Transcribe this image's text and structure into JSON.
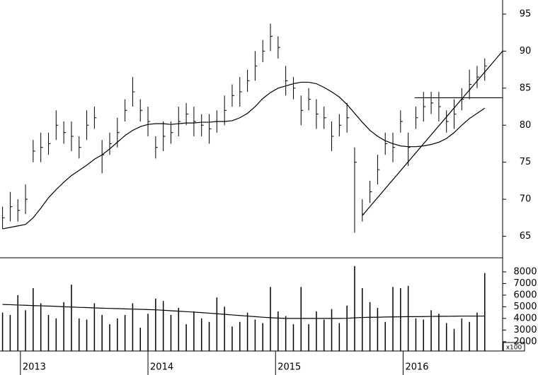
{
  "chart_data": [
    {
      "type": "ohlc",
      "color": "#000000",
      "x": [
        2012.86,
        2012.92,
        2012.98,
        2013.04,
        2013.1,
        2013.16,
        2013.22,
        2013.28,
        2013.34,
        2013.4,
        2013.46,
        2013.52,
        2013.58,
        2013.64,
        2013.7,
        2013.76,
        2013.82,
        2013.88,
        2013.94,
        2014,
        2014.06,
        2014.12,
        2014.18,
        2014.24,
        2014.3,
        2014.36,
        2014.42,
        2014.48,
        2014.54,
        2014.6,
        2014.66,
        2014.72,
        2014.78,
        2014.84,
        2014.9,
        2014.96,
        2015.02,
        2015.08,
        2015.14,
        2015.2,
        2015.26,
        2015.32,
        2015.38,
        2015.44,
        2015.5,
        2015.56,
        2015.62,
        2015.68,
        2015.74,
        2015.8,
        2015.86,
        2015.92,
        2015.98,
        2016.04,
        2016.1,
        2016.16,
        2016.22,
        2016.28,
        2016.34,
        2016.4,
        2016.46,
        2016.52,
        2016.58,
        2016.64
      ],
      "high": [
        69,
        71,
        70,
        72,
        78,
        79,
        79,
        82,
        80.5,
        80.5,
        78.5,
        82,
        82.5,
        78,
        79,
        81,
        83.5,
        86.5,
        83.5,
        82.5,
        78.5,
        80.5,
        80.5,
        82.5,
        83,
        82.5,
        81.5,
        81.5,
        82,
        84,
        85.5,
        86.5,
        87.5,
        90,
        91.5,
        93.7,
        92,
        88,
        86.5,
        84,
        85,
        83.5,
        82.5,
        80.5,
        81.5,
        83,
        77,
        70,
        72.5,
        76,
        79,
        79,
        82,
        79,
        82.5,
        84.5,
        84.5,
        84.5,
        82,
        83.5,
        85,
        87.5,
        88,
        89
      ],
      "low": [
        66,
        67,
        67,
        68,
        75,
        75,
        76,
        78,
        77.5,
        76.5,
        75.5,
        78,
        79.5,
        73.5,
        76,
        77,
        80.5,
        82.5,
        80.5,
        78.5,
        75.5,
        76.5,
        77.5,
        78.5,
        80,
        78.5,
        78.5,
        77.5,
        79,
        80,
        82.5,
        82.5,
        84.5,
        86,
        88.5,
        90,
        89,
        84,
        83.5,
        80,
        82,
        79.5,
        79.5,
        76.5,
        78.5,
        79,
        65.5,
        67,
        69.5,
        72,
        76,
        75,
        79,
        74.5,
        79.5,
        80.5,
        81.5,
        80.5,
        79,
        79.5,
        82,
        83.5,
        85,
        86
      ],
      "close": [
        67.5,
        69,
        68.5,
        70,
        76.5,
        77,
        77.5,
        80,
        79,
        78.5,
        77,
        80,
        81,
        76,
        77.5,
        79,
        82,
        84.5,
        82,
        80.5,
        77,
        78.5,
        79,
        80.5,
        81.5,
        80.5,
        80,
        79.5,
        80.5,
        82,
        84,
        84.5,
        86,
        88,
        90,
        92,
        90.5,
        86,
        85,
        82,
        83.5,
        81.5,
        81,
        78.5,
        80,
        81,
        75,
        68,
        71,
        74,
        77.5,
        77,
        80.5,
        77,
        81,
        82.5,
        83,
        82.5,
        80.5,
        81.5,
        83.5,
        85.5,
        86.5,
        88
      ],
      "ma": [
        66,
        66.2,
        66.4,
        66.6,
        67.5,
        68.8,
        70.2,
        71.3,
        72.3,
        73.2,
        73.9,
        74.6,
        75.4,
        76,
        76.8,
        77.7,
        78.6,
        79.3,
        79.8,
        80.1,
        80.2,
        80.2,
        80.1,
        80.2,
        80.3,
        80.3,
        80.4,
        80.4,
        80.5,
        80.5,
        80.6,
        81,
        81.6,
        82.5,
        83.6,
        84.4,
        85,
        85.3,
        85.6,
        85.8,
        85.8,
        85.6,
        85.1,
        84.5,
        83.8,
        82.8,
        81.6,
        80.4,
        79.3,
        78.5,
        77.9,
        77.5,
        77.2,
        77.1,
        77.1,
        77.2,
        77.4,
        77.7,
        78.2,
        79,
        80,
        80.9,
        81.6,
        82.3
      ],
      "trendlines": [
        {
          "x": [
            2015.68,
            2016.78
          ],
          "y": [
            67.8,
            90
          ]
        },
        {
          "x": [
            2016.09,
            2016.78
          ],
          "y": [
            83.7,
            83.7
          ]
        }
      ],
      "xlim": [
        2012.84,
        2016.78
      ],
      "xticks": [
        2013,
        2014,
        2015,
        2016
      ],
      "ylim": [
        62.1,
        96.9
      ],
      "yticks": [
        65,
        70,
        75,
        80,
        85,
        90,
        95
      ]
    },
    {
      "type": "bar",
      "color": "#000000",
      "unit_label": "x100",
      "values": [
        4500,
        4300,
        6000,
        4700,
        6600,
        5300,
        4300,
        4000,
        5400,
        6900,
        4000,
        3900,
        5300,
        4300,
        3500,
        4000,
        4300,
        5300,
        3200,
        4400,
        5700,
        5500,
        4300,
        4900,
        3500,
        4600,
        4000,
        3700,
        5800,
        5000,
        3300,
        3700,
        4500,
        3900,
        3600,
        6700,
        4600,
        4200,
        3500,
        6700,
        3500,
        4600,
        3900,
        4800,
        3600,
        5100,
        8500,
        6600,
        5400,
        4900,
        3700,
        6700,
        6600,
        6800,
        4000,
        3900,
        4700,
        4400,
        3600,
        3100,
        4000,
        3700,
        4500,
        7900
      ],
      "avg": [
        5200,
        5180,
        5150,
        5130,
        5100,
        5080,
        5060,
        5040,
        5000,
        4980,
        4950,
        4930,
        4900,
        4880,
        4860,
        4840,
        4820,
        4800,
        4780,
        4760,
        4740,
        4700,
        4660,
        4620,
        4580,
        4540,
        4500,
        4450,
        4400,
        4350,
        4300,
        4250,
        4200,
        4150,
        4100,
        4060,
        4030,
        4000,
        4000,
        4000,
        4000,
        4000,
        4000,
        4000,
        4000,
        4010,
        4050,
        4080,
        4100,
        4100,
        4120,
        4130,
        4140,
        4150,
        4150,
        4160,
        4170,
        4180,
        4180,
        4190,
        4200,
        4200,
        4200,
        4200
      ],
      "ylim": [
        1200,
        9150
      ],
      "yticks": [
        2000,
        3000,
        4000,
        5000,
        6000,
        7000,
        8000
      ]
    }
  ]
}
